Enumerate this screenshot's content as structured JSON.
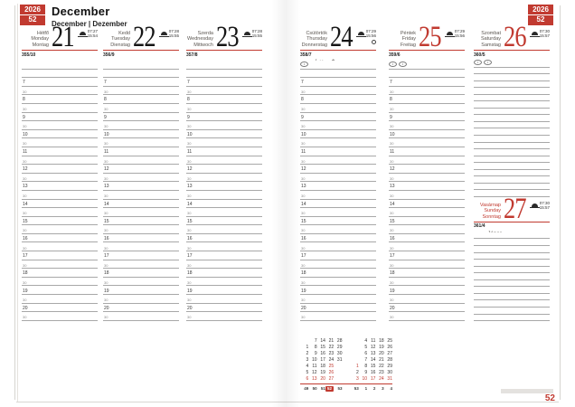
{
  "page": {
    "year": "2026",
    "week": "52",
    "month_title": "December",
    "month_subtitle": "December | Dezember",
    "page_number": "52",
    "accent_color": "#c13a30"
  },
  "grid": {
    "hours": [
      "7",
      "8",
      "9",
      "10",
      "11",
      "12",
      "13",
      "14",
      "15",
      "16",
      "17",
      "18",
      "19",
      "20"
    ],
    "half_label": "30"
  },
  "days": [
    {
      "key": "monday",
      "names": [
        "Hétfő",
        "Monday",
        "Montag"
      ],
      "number": "21",
      "red": false,
      "names_red": false,
      "sunrise": "07:27",
      "sunset": "15:54",
      "day_of_year": "355/10",
      "name_day": "Tamás",
      "badges": [],
      "moon": ""
    },
    {
      "key": "tuesday",
      "names": [
        "Kedd",
        "Tuesday",
        "Dienstag"
      ],
      "number": "22",
      "red": false,
      "names_red": false,
      "sunrise": "07:28",
      "sunset": "15:55",
      "day_of_year": "356/9",
      "name_day": "Zénó, Tifani, Anikó",
      "badges": [],
      "moon": ""
    },
    {
      "key": "wednesday",
      "names": [
        "Szerda",
        "Wednesday",
        "Mittwoch"
      ],
      "number": "23",
      "red": false,
      "names_red": false,
      "sunrise": "07:28",
      "sunset": "15:55",
      "day_of_year": "357/8",
      "name_day": "Viktória, Niké",
      "badges": [],
      "moon": ""
    },
    {
      "key": "thursday",
      "names": [
        "Csütörtök",
        "Thursday",
        "Donnerstag"
      ],
      "number": "24",
      "red": false,
      "names_red": false,
      "sunrise": "07:29",
      "sunset": "15:56",
      "day_of_year": "358/7",
      "name_day": "Ádám, Éva",
      "badges": [
        "•"
      ],
      "moon": "○"
    },
    {
      "key": "friday",
      "names": [
        "Péntek",
        "Friday",
        "Freitag"
      ],
      "number": "25",
      "red": true,
      "names_red": false,
      "sunrise": "07:29",
      "sunset": "15:56",
      "day_of_year": "359/6",
      "name_day": "Karácsony, Eugénia",
      "badges": [
        "•",
        "•"
      ],
      "moon": ""
    },
    {
      "key": "saturday",
      "names": [
        "Szombat",
        "Saturday",
        "Samstag"
      ],
      "number": "26",
      "red": true,
      "names_red": false,
      "sunrise": "07:30",
      "sunset": "15:57",
      "day_of_year": "360/5",
      "name_day": "Karácsony, István",
      "badges": [
        "•",
        "•"
      ],
      "moon": ""
    },
    {
      "key": "sunday",
      "names": [
        "Vasárnap",
        "Sunday",
        "Sonntag"
      ],
      "number": "27",
      "red": true,
      "names_red": true,
      "sunrise": "07:30",
      "sunset": "15:57",
      "day_of_year": "361/4",
      "name_day": "János",
      "badges": [],
      "moon": ""
    }
  ],
  "mini_calendar": {
    "months": [
      {
        "label": "december",
        "rows": [
          [
            "",
            "7",
            "14",
            "21",
            "28"
          ],
          [
            "1",
            "8",
            "15",
            "22",
            "29"
          ],
          [
            "2",
            "9",
            "16",
            "23",
            "30"
          ],
          [
            "3",
            "10",
            "17",
            "24",
            "31"
          ],
          [
            "4",
            "11",
            "18",
            "25",
            ""
          ],
          [
            "5",
            "12",
            "19",
            "26",
            ""
          ],
          [
            "6",
            "13",
            "20",
            "27",
            ""
          ]
        ],
        "red_cells": [
          [
            4,
            3
          ],
          [
            5,
            3
          ],
          [
            6,
            0
          ],
          [
            6,
            1
          ],
          [
            6,
            2
          ],
          [
            6,
            3
          ]
        ]
      },
      {
        "label": "january",
        "rows": [
          [
            "",
            "4",
            "11",
            "18",
            "25"
          ],
          [
            "",
            "5",
            "12",
            "19",
            "26"
          ],
          [
            "",
            "6",
            "13",
            "20",
            "27"
          ],
          [
            "",
            "7",
            "14",
            "21",
            "28"
          ],
          [
            "1",
            "8",
            "15",
            "22",
            "29"
          ],
          [
            "2",
            "9",
            "16",
            "23",
            "30"
          ],
          [
            "3",
            "10",
            "17",
            "24",
            "31"
          ]
        ],
        "red_cells": [
          [
            4,
            0
          ],
          [
            6,
            0
          ],
          [
            6,
            1
          ],
          [
            6,
            2
          ],
          [
            6,
            3
          ],
          [
            6,
            4
          ]
        ]
      }
    ],
    "week_numbers": [
      "49",
      "50",
      "51",
      "52",
      "53",
      "53",
      "1",
      "2",
      "3",
      "4"
    ],
    "current_week_index": 3
  }
}
